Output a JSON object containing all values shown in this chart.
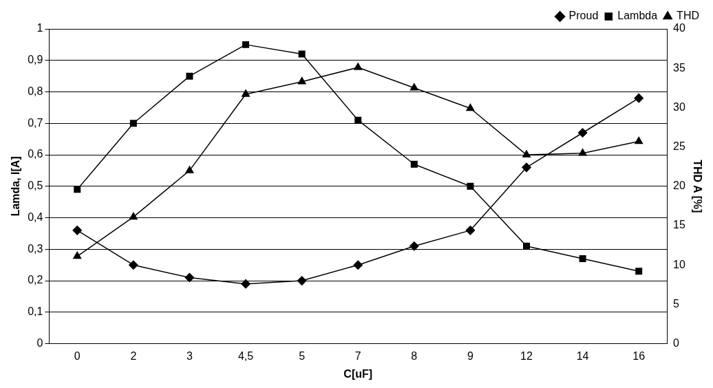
{
  "chart_data": {
    "type": "line",
    "xlabel": "C[uF]",
    "ylabel": "Lamda, I[A]",
    "y2label": "THD A [%]",
    "categories": [
      "0",
      "2",
      "3",
      "4,5",
      "5",
      "7",
      "8",
      "9",
      "12",
      "14",
      "16"
    ],
    "series": [
      {
        "name": "Proud",
        "color": "#000000",
        "marker": "diamond",
        "values": [
          0.36,
          0.25,
          0.21,
          0.19,
          0.2,
          0.25,
          0.31,
          0.36,
          0.56,
          0.67,
          0.78
        ]
      },
      {
        "name": "Lambda",
        "color": "#000000",
        "marker": "square",
        "values": [
          0.49,
          0.7,
          0.85,
          0.95,
          0.92,
          0.71,
          0.57,
          0.5,
          0.31,
          0.27,
          0.23
        ]
      },
      {
        "name": "THD",
        "color": "#000000",
        "marker": "triangle",
        "axis": "y2",
        "values": [
          11.1,
          16.1,
          22,
          31.7,
          33.3,
          35.1,
          32.5,
          29.9,
          24,
          24.2,
          25.7
        ]
      }
    ],
    "ylim": [
      0,
      1
    ],
    "yticks": [
      0,
      {
        "value": 0.1,
        "label": "0,1"
      },
      {
        "value": 0.2,
        "label": "0,2"
      },
      {
        "value": 0.3,
        "label": "0,3"
      },
      {
        "value": 0.4,
        "label": "0,4"
      },
      {
        "value": 0.5,
        "label": "0,5"
      },
      {
        "value": 0.6,
        "label": "0,6"
      },
      {
        "value": 0.7,
        "label": "0,7"
      },
      {
        "value": 0.8,
        "label": "0,8"
      },
      {
        "value": 0.9,
        "label": "0,9"
      },
      1
    ],
    "y2lim": [
      0,
      40
    ],
    "y2ticks": [
      0,
      5,
      10,
      15,
      20,
      25,
      30,
      35,
      40
    ],
    "grid": "y",
    "legend": "top right"
  }
}
